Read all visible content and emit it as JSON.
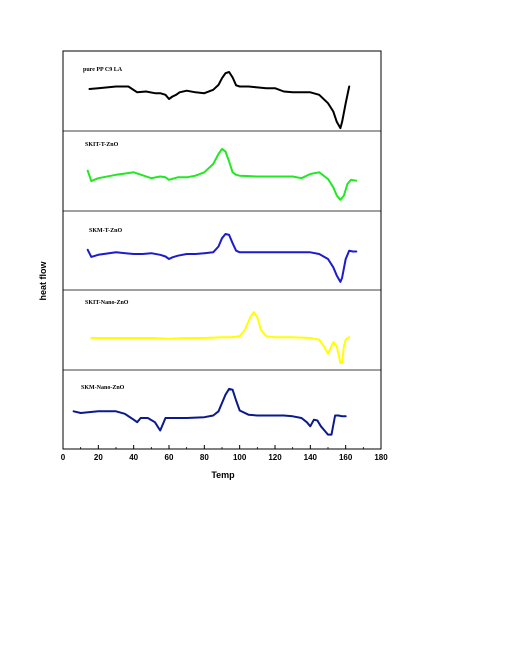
{
  "chart_data": {
    "type": "line",
    "title": "",
    "xlabel": "Temp",
    "ylabel": "heat flow",
    "xlim": [
      0,
      180
    ],
    "xticks": [
      "0",
      "20",
      "40",
      "60",
      "80",
      "100",
      "120",
      "140",
      "160",
      "180"
    ],
    "grid": false,
    "legend": "none",
    "series": [
      {
        "name": "pure PP C9 LA",
        "color": "#000000",
        "x": [
          15,
          20,
          30,
          37,
          42,
          47,
          52,
          55,
          58,
          60,
          62,
          64,
          66,
          70,
          75,
          80,
          85,
          88,
          90,
          92,
          94,
          96,
          98,
          100,
          105,
          110,
          115,
          120,
          125,
          130,
          135,
          140,
          145,
          150,
          153,
          155,
          157,
          158,
          160,
          162
        ],
        "y": [
          0.74,
          0.76,
          0.8,
          0.8,
          0.66,
          0.68,
          0.64,
          0.64,
          0.6,
          0.5,
          0.56,
          0.6,
          0.66,
          0.7,
          0.66,
          0.64,
          0.72,
          0.84,
          1.0,
          1.12,
          1.15,
          1.02,
          0.83,
          0.8,
          0.8,
          0.78,
          0.76,
          0.76,
          0.68,
          0.66,
          0.66,
          0.66,
          0.6,
          0.4,
          0.2,
          -0.05,
          -0.2,
          -0.05,
          0.4,
          0.8
        ]
      },
      {
        "name": "SKIT-T-ZnO",
        "color": "#22e822",
        "x": [
          14,
          16,
          20,
          30,
          40,
          50,
          55,
          58,
          60,
          65,
          70,
          75,
          80,
          85,
          88,
          90,
          92,
          94,
          96,
          98,
          100,
          110,
          120,
          130,
          135,
          140,
          145,
          150,
          153,
          155,
          157,
          159,
          161,
          163,
          166
        ],
        "y": [
          0.7,
          0.45,
          0.52,
          0.6,
          0.66,
          0.52,
          0.56,
          0.54,
          0.48,
          0.54,
          0.54,
          0.58,
          0.66,
          0.86,
          1.1,
          1.22,
          1.16,
          0.92,
          0.66,
          0.6,
          0.58,
          0.56,
          0.56,
          0.56,
          0.52,
          0.62,
          0.66,
          0.5,
          0.3,
          0.1,
          0.0,
          0.1,
          0.38,
          0.48,
          0.46
        ]
      },
      {
        "name": "SKM-T-ZnO",
        "color": "#1c1ccc",
        "x": [
          14,
          16,
          20,
          30,
          40,
          45,
          50,
          55,
          58,
          60,
          62,
          65,
          70,
          75,
          80,
          85,
          88,
          90,
          92,
          94,
          96,
          98,
          100,
          110,
          120,
          130,
          140,
          145,
          150,
          153,
          155,
          157,
          158,
          160,
          162,
          164,
          166
        ],
        "y": [
          0.72,
          0.55,
          0.6,
          0.66,
          0.62,
          0.62,
          0.64,
          0.6,
          0.56,
          0.5,
          0.54,
          0.58,
          0.62,
          0.62,
          0.64,
          0.66,
          0.8,
          1.0,
          1.1,
          1.08,
          0.88,
          0.7,
          0.66,
          0.66,
          0.66,
          0.66,
          0.66,
          0.62,
          0.5,
          0.3,
          0.1,
          -0.05,
          0.05,
          0.5,
          0.7,
          0.68,
          0.68
        ]
      },
      {
        "name": "SKIT-Nano-ZnO",
        "color": "#ffff00",
        "x": [
          16,
          20,
          30,
          40,
          50,
          60,
          70,
          80,
          90,
          95,
          100,
          103,
          106,
          108,
          110,
          112,
          115,
          120,
          130,
          140,
          145,
          148,
          150,
          153,
          155,
          157,
          158,
          159,
          160,
          162
        ],
        "y": [
          0.5,
          0.5,
          0.5,
          0.5,
          0.5,
          0.48,
          0.5,
          0.5,
          0.52,
          0.52,
          0.54,
          0.7,
          1.0,
          1.12,
          1.0,
          0.7,
          0.54,
          0.52,
          0.52,
          0.5,
          0.46,
          0.28,
          0.12,
          0.4,
          0.3,
          -0.1,
          -0.1,
          0.3,
          0.46,
          0.52
        ]
      },
      {
        "name": "SKM-Nano-ZnO",
        "color": "#0a1a8c",
        "x": [
          6,
          10,
          20,
          30,
          35,
          40,
          42,
          44,
          48,
          52,
          55,
          58,
          60,
          65,
          70,
          80,
          85,
          88,
          90,
          92,
          94,
          96,
          98,
          100,
          105,
          110,
          115,
          120,
          125,
          130,
          135,
          138,
          140,
          142,
          144,
          146,
          148,
          150,
          152,
          154,
          156,
          158,
          160
        ],
        "y": [
          0.66,
          0.62,
          0.66,
          0.66,
          0.6,
          0.46,
          0.4,
          0.5,
          0.5,
          0.4,
          0.2,
          0.5,
          0.5,
          0.5,
          0.5,
          0.52,
          0.56,
          0.66,
          0.86,
          1.06,
          1.2,
          1.18,
          0.92,
          0.68,
          0.58,
          0.56,
          0.56,
          0.56,
          0.56,
          0.54,
          0.5,
          0.4,
          0.3,
          0.46,
          0.44,
          0.3,
          0.2,
          0.1,
          0.1,
          0.56,
          0.56,
          0.54,
          0.54
        ]
      }
    ]
  }
}
